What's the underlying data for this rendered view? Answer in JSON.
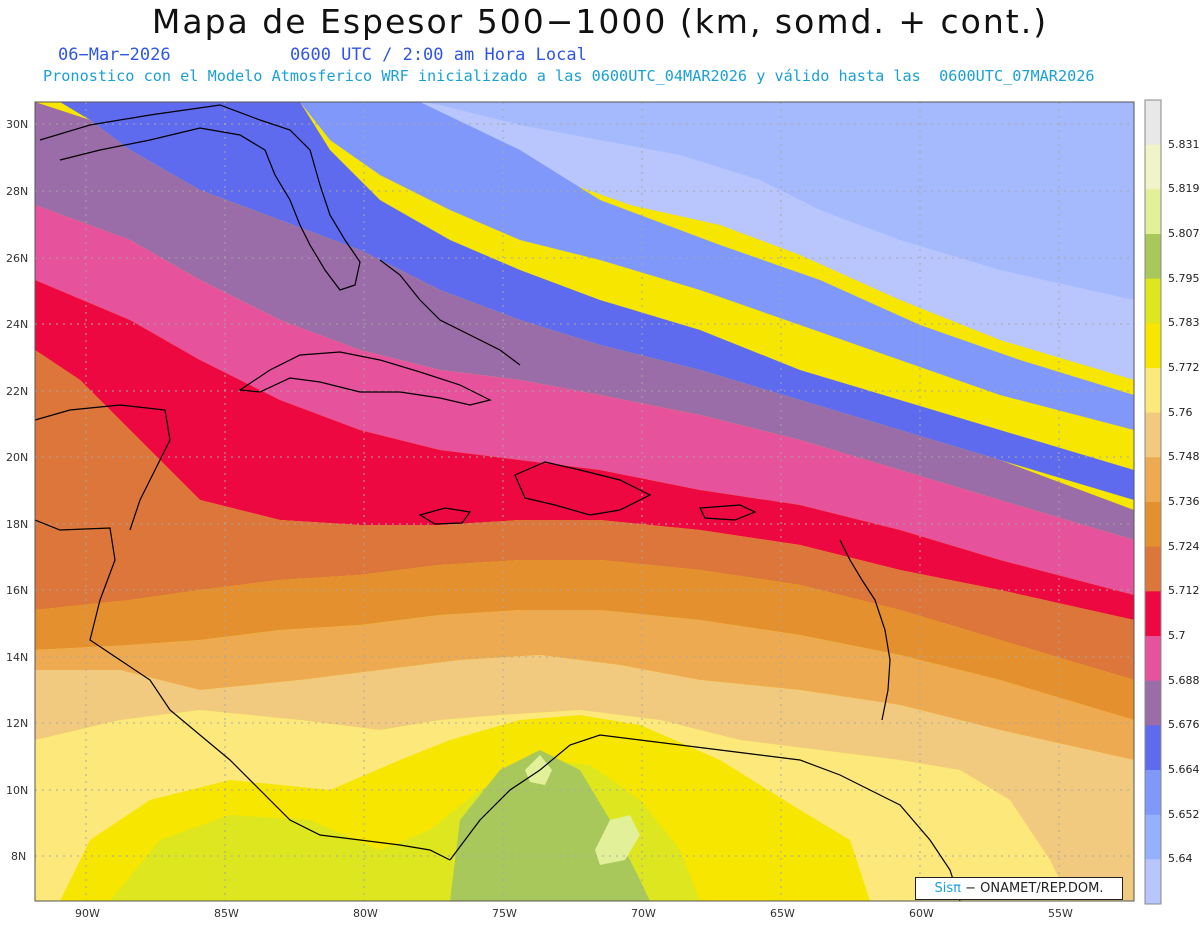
{
  "header": {
    "title": "Mapa de Espesor 500−1000 (km, somd. + cont.)",
    "date": "06−Mar−2026",
    "time": "0600 UTC / 2:00 am Hora Local",
    "forecast": "Pronostico con el Modelo Atmosferico WRF inicializado a las 0600UTC_04MAR2026 y válido hasta las  0600UTC_07MAR2026"
  },
  "axes": {
    "lat_labels": [
      "30N",
      "28N",
      "26N",
      "24N",
      "22N",
      "20N",
      "18N",
      "16N",
      "14N",
      "12N",
      "10N",
      "8N"
    ],
    "lon_labels": [
      "90W",
      "85W",
      "80W",
      "75W",
      "70W",
      "65W",
      "60W",
      "55W"
    ]
  },
  "colorbar": {
    "levels": [
      "5.831",
      "5.819",
      "5.807",
      "5.795",
      "5.783",
      "5.772",
      "5.76",
      "5.748",
      "5.736",
      "5.724",
      "5.712",
      "5.7",
      "5.688",
      "5.676",
      "5.664",
      "5.652",
      "5.64"
    ],
    "colors": [
      "#e8e8e8",
      "#f1f4c6",
      "#e2f09a",
      "#a8c85c",
      "#dde61e",
      "#f7e600",
      "#fde87c",
      "#f1ca80",
      "#eeaa50",
      "#e4902e",
      "#dc763a",
      "#ee0842",
      "#e6529c",
      "#9a6ca8",
      "#5f6bef",
      "#7f98f9",
      "#95b1fd",
      "#b8c6fd"
    ]
  },
  "footer": {
    "brand": "Sisπ",
    "credit": "− ONAMET/REP.DOM."
  },
  "colors": {
    "subtitle_blue": "#2f56e6",
    "subtitle_cyan": "#1aa0d8"
  }
}
